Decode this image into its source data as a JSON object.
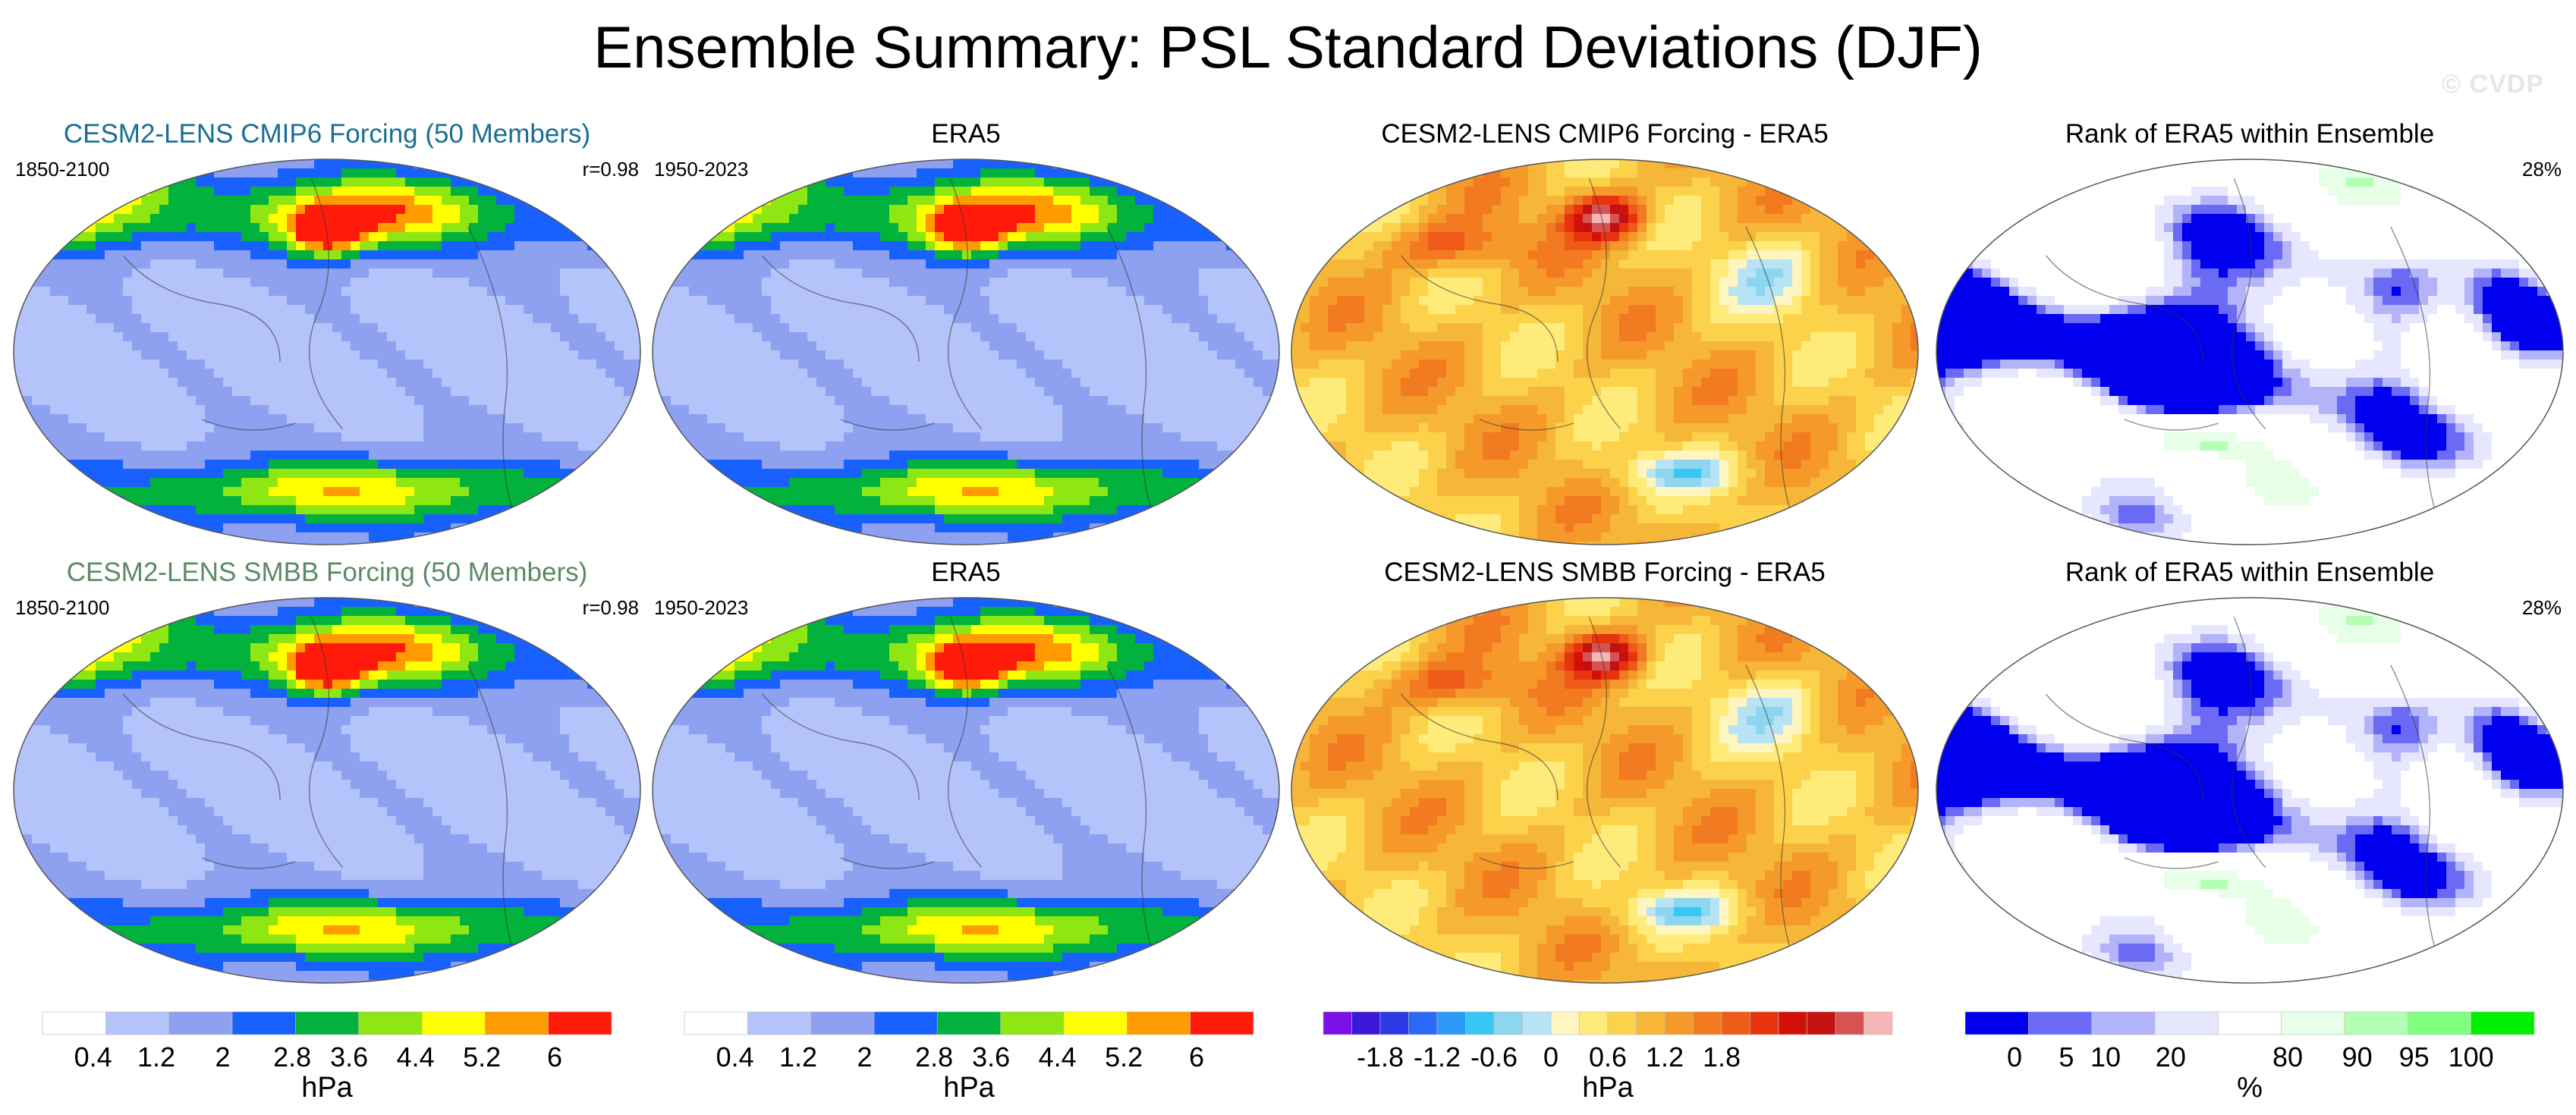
{
  "title": "Ensemble Summary: PSL Standard Deviations (DJF)",
  "watermark": "© CVDP",
  "colors": {
    "title_cmip6": "#1a6e93",
    "title_smbb": "#5b8a66",
    "land": "#1a1a1a"
  },
  "chart_data": [
    {
      "type": "heatmap",
      "title": "CESM2-LENS CMIP6 Forcing (50 Members)",
      "left_label": "1850-2100",
      "right_label": "r=0.98",
      "units": "hPa",
      "field": "std",
      "title_color": "#1a6e93"
    },
    {
      "type": "heatmap",
      "title": "ERA5",
      "left_label": "1950-2023",
      "right_label": "",
      "units": "hPa",
      "field": "std_obs",
      "title_color": "#000000"
    },
    {
      "type": "heatmap",
      "title": "CESM2-LENS CMIP6 Forcing - ERA5",
      "left_label": "",
      "right_label": "",
      "units": "hPa",
      "field": "diff",
      "title_color": "#000000"
    },
    {
      "type": "heatmap",
      "title": "Rank of ERA5 within Ensemble",
      "left_label": "",
      "right_label": "28%",
      "units": "%",
      "field": "rank",
      "title_color": "#000000"
    },
    {
      "type": "heatmap",
      "title": "CESM2-LENS SMBB Forcing (50 Members)",
      "left_label": "1850-2100",
      "right_label": "r=0.98",
      "units": "hPa",
      "field": "std",
      "title_color": "#5b8a66"
    },
    {
      "type": "heatmap",
      "title": "ERA5",
      "left_label": "1950-2023",
      "right_label": "",
      "units": "hPa",
      "field": "std_obs",
      "title_color": "#000000"
    },
    {
      "type": "heatmap",
      "title": "CESM2-LENS SMBB Forcing - ERA5",
      "left_label": "",
      "right_label": "",
      "units": "hPa",
      "field": "diff",
      "title_color": "#000000"
    },
    {
      "type": "heatmap",
      "title": "Rank of ERA5 within Ensemble",
      "left_label": "",
      "right_label": "28%",
      "units": "%",
      "field": "rank",
      "title_color": "#000000"
    }
  ],
  "colorbars": [
    {
      "name": "std",
      "units": "hPa",
      "colors": [
        "#ffffff",
        "#b4c3fa",
        "#8ea1f0",
        "#1961ff",
        "#02b23c",
        "#8ee612",
        "#ffff00",
        "#ff9b00",
        "#ff1a0a"
      ],
      "tick_labels": [
        "0.4",
        "1.2",
        "2",
        "2.8",
        "3.6",
        "4.4",
        "5.2",
        "6"
      ],
      "tick_boxes": [
        0.8,
        1.8,
        2.85,
        3.95,
        4.85,
        5.9,
        6.95,
        8.1
      ]
    },
    {
      "name": "std",
      "units": "hPa",
      "colors": [
        "#ffffff",
        "#b4c3fa",
        "#8ea1f0",
        "#1961ff",
        "#02b23c",
        "#8ee612",
        "#ffff00",
        "#ff9b00",
        "#ff1a0a"
      ],
      "tick_labels": [
        "0.4",
        "1.2",
        "2",
        "2.8",
        "3.6",
        "4.4",
        "5.2",
        "6"
      ],
      "tick_boxes": [
        0.8,
        1.8,
        2.85,
        3.95,
        4.85,
        5.9,
        6.95,
        8.1
      ]
    },
    {
      "name": "diff",
      "units": "hPa",
      "colors": [
        "#7a12e8",
        "#3b17d9",
        "#2d39e5",
        "#2b68f5",
        "#2b9af5",
        "#38c6f5",
        "#8cd6f0",
        "#b7e3f5",
        "#fff5c0",
        "#ffeb7a",
        "#fcd24a",
        "#f6b638",
        "#f59a2a",
        "#f27a20",
        "#ee5a18",
        "#e8340e",
        "#d41108",
        "#c31010",
        "#d65353",
        "#f7b6b6"
      ],
      "tick_labels": [
        "-1.8",
        "-1.2",
        "-0.6",
        "0",
        "0.6",
        "1.2",
        "1.8"
      ],
      "tick_boxes": [
        2.0,
        4.0,
        6.0,
        8.0,
        10.0,
        12.0,
        14.0,
        16.0,
        18.0
      ]
    },
    {
      "name": "rank",
      "units": "%",
      "colors": [
        "#0000ee",
        "#6a6af5",
        "#b3b3fa",
        "#e6e6ff",
        "#ffffff",
        "#e6ffe6",
        "#b3ffb3",
        "#80ff80",
        "#00ee00"
      ],
      "tick_labels": [
        "0",
        "5",
        "10",
        "20",
        "80",
        "90",
        "95",
        "100"
      ],
      "tick_boxes": [
        0.78,
        1.6,
        2.22,
        3.25,
        5.1,
        6.2,
        7.1,
        8.0
      ]
    }
  ]
}
